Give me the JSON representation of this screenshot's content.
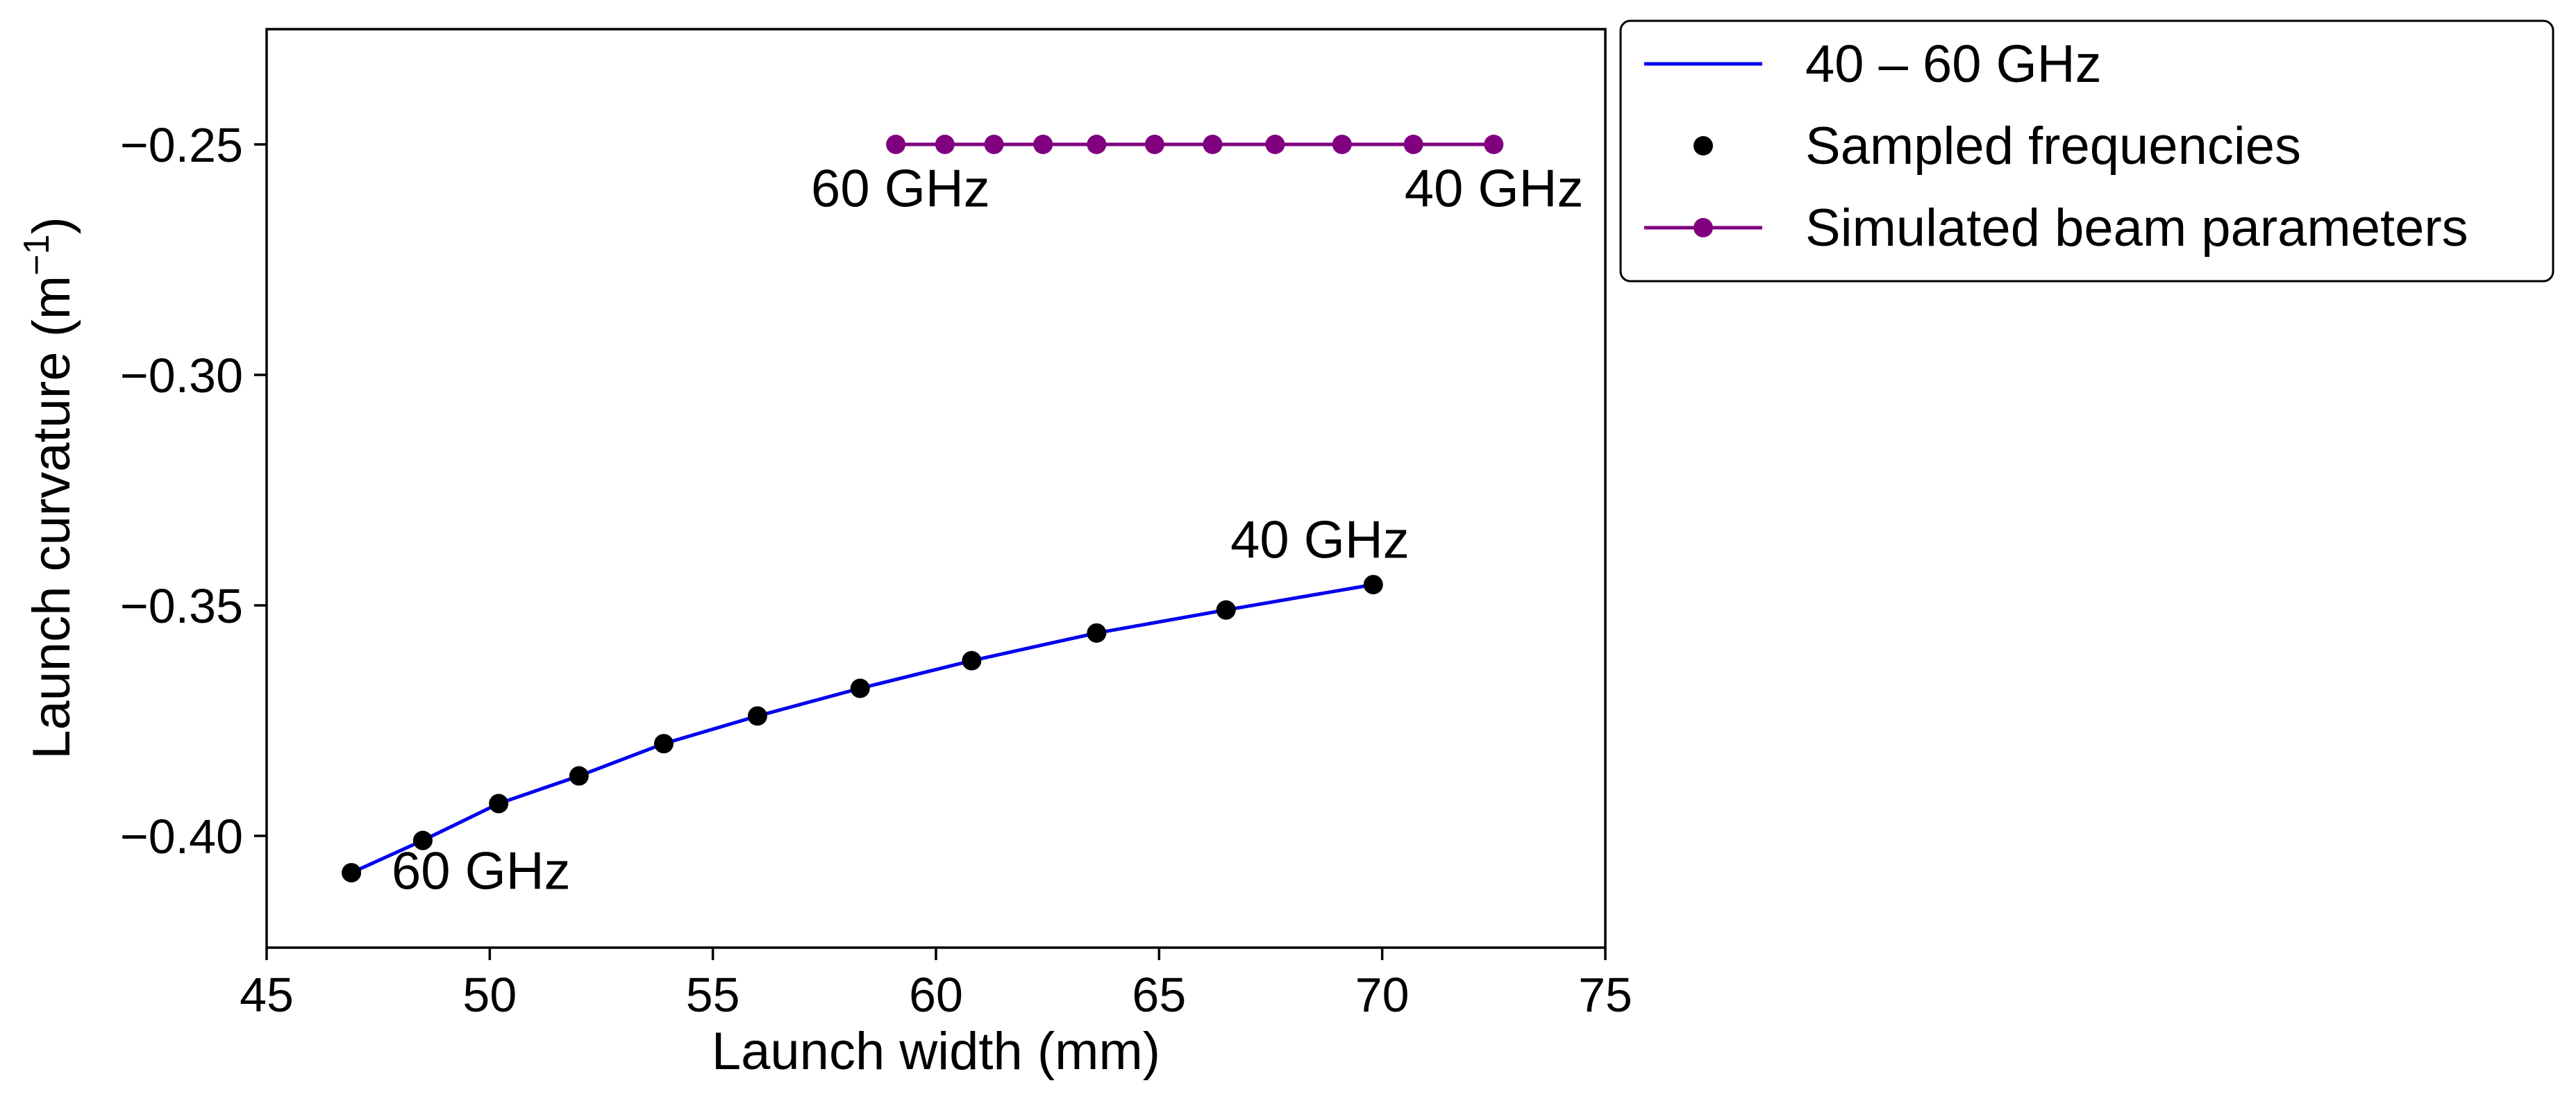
{
  "chart_data": {
    "type": "line",
    "xlabel": "Launch width (mm)",
    "ylabel_main": "Launch curvature (m",
    "ylabel_sup": "−1",
    "ylabel_close": ")",
    "xlim": [
      45,
      75
    ],
    "ylim": [
      -0.425,
      -0.225
    ],
    "xticks": [
      45,
      50,
      55,
      60,
      65,
      70,
      75
    ],
    "xtick_labels": [
      "45",
      "50",
      "55",
      "60",
      "65",
      "70",
      "75"
    ],
    "yticks": [
      -0.4,
      -0.35,
      -0.3,
      -0.25
    ],
    "ytick_labels": [
      "−0.40",
      "−0.35",
      "−0.30",
      "−0.25"
    ],
    "grid": false,
    "legend_position": "outside-top-right",
    "series": [
      {
        "name": "40 – 60 GHz",
        "kind": "line",
        "color": "#0000ee",
        "x": [
          46.9,
          48.5,
          50.2,
          52.0,
          53.9,
          56.0,
          58.3,
          60.8,
          63.6,
          66.5,
          69.8
        ],
        "y": [
          -0.408,
          -0.401,
          -0.393,
          -0.387,
          -0.38,
          -0.374,
          -0.368,
          -0.362,
          -0.356,
          -0.351,
          -0.3455
        ]
      },
      {
        "name": "Sampled frequencies",
        "kind": "markers",
        "color": "#000000",
        "x": [
          46.9,
          48.5,
          50.2,
          52.0,
          53.9,
          56.0,
          58.3,
          60.8,
          63.6,
          66.5,
          69.8
        ],
        "y": [
          -0.408,
          -0.401,
          -0.393,
          -0.387,
          -0.38,
          -0.374,
          -0.368,
          -0.362,
          -0.356,
          -0.351,
          -0.3455
        ]
      },
      {
        "name": "Simulated beam parameters",
        "kind": "line-markers",
        "color": "#800080",
        "x": [
          59.1,
          60.2,
          61.3,
          62.4,
          63.6,
          64.9,
          66.2,
          67.6,
          69.1,
          70.7,
          72.5
        ],
        "y": [
          -0.25,
          -0.25,
          -0.25,
          -0.25,
          -0.25,
          -0.25,
          -0.25,
          -0.25,
          -0.25,
          -0.25,
          -0.25
        ]
      }
    ],
    "annotations": [
      {
        "text": "60 GHz",
        "x": 47.8,
        "y": -0.4115,
        "anchor": "start"
      },
      {
        "text": "40 GHz",
        "x": 66.6,
        "y": -0.3397,
        "anchor": "start"
      },
      {
        "text": "60 GHz",
        "x": 57.2,
        "y": -0.2635,
        "anchor": "start"
      },
      {
        "text": "40 GHz",
        "x": 70.5,
        "y": -0.2635,
        "anchor": "start"
      }
    ]
  }
}
